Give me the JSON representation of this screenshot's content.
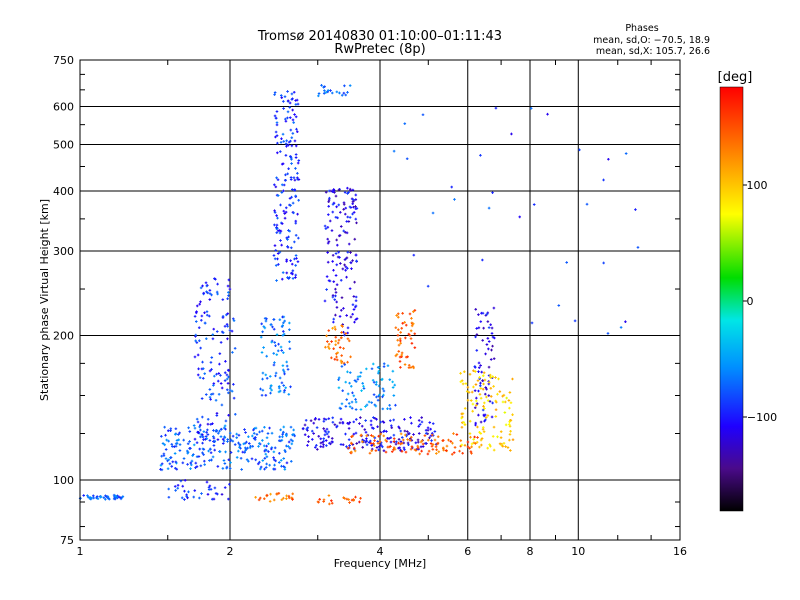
{
  "chart_data": {
    "type": "scatter",
    "title": "Tromsø 20140830 01:10:00–01:11:43",
    "subtitle": "RwPretec (8p)",
    "xlabel": "Frequency [MHz]",
    "ylabel": "Stationary phase Virtual Height [km]",
    "x_scale": "log",
    "y_scale": "log",
    "xlim": [
      1,
      16
    ],
    "ylim": [
      75,
      750
    ],
    "x_ticks": [
      "1",
      "2",
      "4",
      "6",
      "8",
      "10",
      "16"
    ],
    "y_ticks": [
      "75",
      "100",
      "200",
      "300",
      "400",
      "500",
      "600",
      "750"
    ],
    "grid": true,
    "stats": {
      "heading": "Phases",
      "o_line": "mean, sd,O: −70.5, 18.9",
      "x_line": "mean, sd,X: 105.7, 26.6"
    },
    "colorbar": {
      "label": "[deg]",
      "range": [
        -180,
        180
      ],
      "ticks": [
        "100",
        "0",
        "−100"
      ]
    },
    "point_groups": [
      {
        "name": "low-band",
        "f": [
          1.0,
          1.22
        ],
        "h": [
          91,
          93
        ],
        "phase": -75,
        "n": 45
      },
      {
        "name": "low-band-2",
        "f": [
          1.45,
          2.0
        ],
        "h": [
          91,
          100
        ],
        "phase": -95,
        "n": 35
      },
      {
        "name": "e-ripple",
        "f": [
          1.45,
          2.7
        ],
        "h": [
          105,
          130
        ],
        "phase": -75,
        "n": 260
      },
      {
        "name": "e-orange",
        "f": [
          2.25,
          2.7
        ],
        "h": [
          90,
          94
        ],
        "phase": 135,
        "n": 25
      },
      {
        "name": "trace-2mhz",
        "f": [
          1.7,
          2.05
        ],
        "h": [
          120,
          265
        ],
        "phase": -90,
        "n": 150
      },
      {
        "name": "trace-2.6mhz",
        "f": [
          2.45,
          2.75
        ],
        "h": [
          260,
          650
        ],
        "phase": -90,
        "n": 180
      },
      {
        "name": "trace-2.6mhz-cyan",
        "f": [
          2.3,
          2.65
        ],
        "h": [
          150,
          220
        ],
        "phase": -70,
        "n": 80
      },
      {
        "name": "trace-3.3mhz",
        "f": [
          3.1,
          3.6
        ],
        "h": [
          200,
          410
        ],
        "phase": -110,
        "n": 150
      },
      {
        "name": "trace-3.3mhz-orange",
        "f": [
          3.1,
          3.5
        ],
        "h": [
          175,
          210
        ],
        "phase": 135,
        "n": 40
      },
      {
        "name": "f-region-blue",
        "f": [
          2.8,
          5.2
        ],
        "h": [
          115,
          135
        ],
        "phase": -110,
        "n": 200
      },
      {
        "name": "f-region-orange",
        "f": [
          3.4,
          6.3
        ],
        "h": [
          113,
          125
        ],
        "phase": 140,
        "n": 110
      },
      {
        "name": "f-cyan",
        "f": [
          3.3,
          4.3
        ],
        "h": [
          140,
          175
        ],
        "phase": -60,
        "n": 80
      },
      {
        "name": "trace-4.5mhz",
        "f": [
          4.3,
          4.7
        ],
        "h": [
          170,
          230
        ],
        "phase": 140,
        "n": 50
      },
      {
        "name": "trace-6.5mhz",
        "f": [
          6.2,
          6.8
        ],
        "h": [
          130,
          230
        ],
        "phase": -110,
        "n": 70
      },
      {
        "name": "yellow-cluster",
        "f": [
          5.8,
          7.4
        ],
        "h": [
          115,
          170
        ],
        "phase": 90,
        "n": 120
      },
      {
        "name": "top-3mhz",
        "f": [
          3.0,
          3.5
        ],
        "h": [
          630,
          665
        ],
        "phase": -70,
        "n": 20
      },
      {
        "name": "sparse-high",
        "f": [
          4.0,
          14.0
        ],
        "h": [
          200,
          620
        ],
        "phase": -90,
        "n": 35
      },
      {
        "name": "e-91-orange",
        "f": [
          3.0,
          3.8
        ],
        "h": [
          89,
          93
        ],
        "phase": 140,
        "n": 20
      }
    ]
  }
}
